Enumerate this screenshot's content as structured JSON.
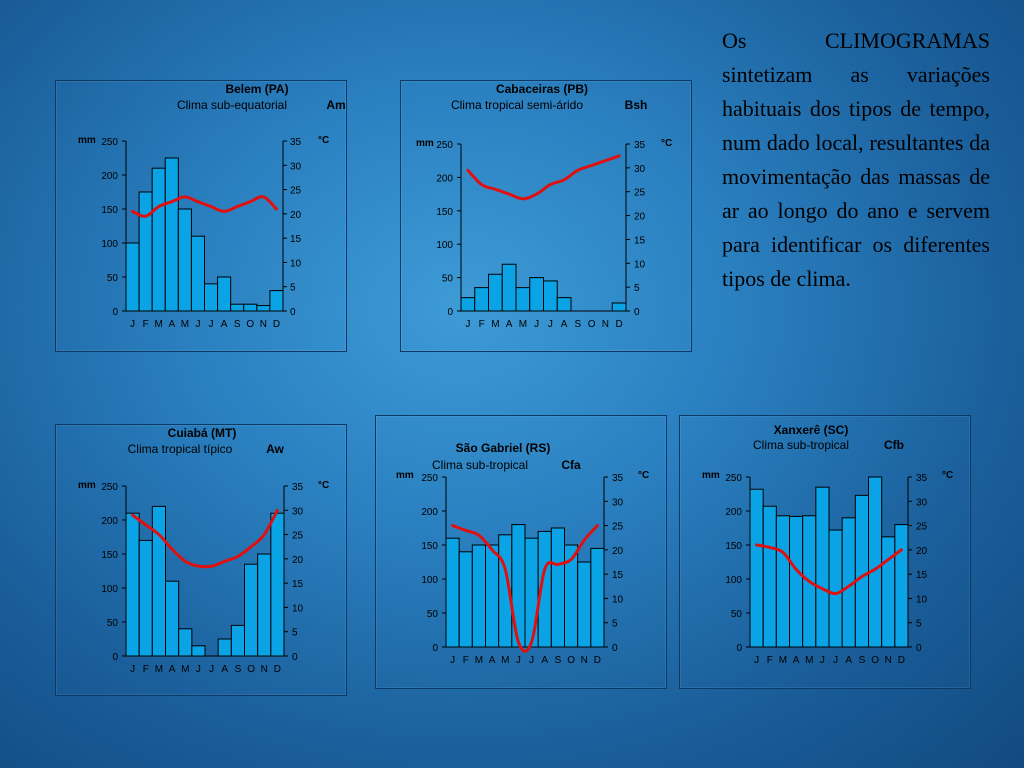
{
  "side_text": "Os CLIMOGRAMAS sintetizam as variações habituais dos tipos de tempo, num dado local, resultantes da movimentação das massas de ar ao longo do ano e servem para identificar os diferentes tipos de clima.",
  "chart_data": [
    {
      "type": "bar",
      "title": "Belem (PA)",
      "subtitle": "Clima sub-equatorial",
      "code": "Am",
      "categories": [
        "J",
        "F",
        "M",
        "A",
        "M",
        "J",
        "J",
        "A",
        "S",
        "O",
        "N",
        "D"
      ],
      "ylabel": "mm",
      "y2label": "°C",
      "ylim": [
        0,
        250
      ],
      "y2lim": [
        0,
        35
      ],
      "yticks": [
        0,
        50,
        100,
        150,
        200,
        250
      ],
      "y2ticks": [
        0,
        5,
        10,
        15,
        20,
        25,
        30,
        35
      ],
      "series": [
        {
          "kind": "bar",
          "values": [
            100,
            175,
            210,
            225,
            150,
            110,
            40,
            50,
            10,
            10,
            8,
            30
          ]
        },
        {
          "kind": "line",
          "values": [
            20.5,
            19.5,
            21.5,
            22.5,
            23.5,
            22.5,
            21.5,
            20.5,
            21.5,
            22.5,
            23.5,
            21
          ]
        }
      ]
    },
    {
      "type": "bar",
      "title": "Cabaceiras (PB)",
      "subtitle": "Clima tropical semi-árido",
      "code": "Bsh",
      "categories": [
        "J",
        "F",
        "M",
        "A",
        "M",
        "J",
        "J",
        "A",
        "S",
        "O",
        "N",
        "D"
      ],
      "ylabel": "mm",
      "y2label": "°C",
      "ylim": [
        0,
        250
      ],
      "y2lim": [
        0,
        35
      ],
      "yticks": [
        0,
        50,
        100,
        150,
        200,
        250
      ],
      "y2ticks": [
        0,
        5,
        10,
        15,
        20,
        25,
        30,
        35
      ],
      "series": [
        {
          "kind": "bar",
          "values": [
            20,
            35,
            55,
            70,
            35,
            50,
            45,
            20,
            0,
            0,
            0,
            12
          ]
        },
        {
          "kind": "line",
          "values": [
            29.5,
            26.5,
            25.5,
            24.5,
            23.5,
            24.5,
            26.5,
            27.5,
            29.5,
            30.5,
            31.5,
            32.5
          ]
        }
      ]
    },
    {
      "type": "bar",
      "title": "Cuiabá (MT)",
      "subtitle": "Clima tropical típico",
      "code": "Aw",
      "categories": [
        "J",
        "F",
        "M",
        "A",
        "M",
        "J",
        "J",
        "A",
        "S",
        "O",
        "N",
        "D"
      ],
      "ylabel": "mm",
      "y2label": "°C",
      "ylim": [
        0,
        250
      ],
      "y2lim": [
        0,
        35
      ],
      "yticks": [
        0,
        50,
        100,
        150,
        200,
        250
      ],
      "y2ticks": [
        0,
        5,
        10,
        15,
        20,
        25,
        30,
        35
      ],
      "series": [
        {
          "kind": "bar",
          "values": [
            210,
            170,
            220,
            110,
            40,
            15,
            0,
            25,
            45,
            135,
            150,
            210
          ]
        },
        {
          "kind": "line",
          "values": [
            29,
            27,
            25,
            22,
            19.5,
            18.5,
            18.5,
            19.5,
            20.5,
            22.5,
            25,
            30
          ]
        }
      ]
    },
    {
      "type": "bar",
      "title": "São Gabriel (RS)",
      "subtitle": "Clima sub-tropical",
      "code": "Cfa",
      "categories": [
        "J",
        "F",
        "M",
        "A",
        "M",
        "J",
        "J",
        "A",
        "S",
        "O",
        "N",
        "D"
      ],
      "ylabel": "mm",
      "y2label": "°C",
      "ylim": [
        0,
        250
      ],
      "y2lim": [
        0,
        35
      ],
      "yticks": [
        0,
        50,
        100,
        150,
        200,
        250
      ],
      "y2ticks": [
        0,
        5,
        10,
        15,
        20,
        25,
        30,
        35
      ],
      "series": [
        {
          "kind": "bar",
          "values": [
            160,
            140,
            150,
            150,
            165,
            180,
            160,
            170,
            175,
            150,
            125,
            145
          ]
        },
        {
          "kind": "line",
          "values": [
            25,
            24,
            23,
            20,
            16,
            1,
            1,
            16,
            17,
            18,
            22,
            25
          ]
        }
      ]
    },
    {
      "type": "bar",
      "title": "Xanxerê (SC)",
      "subtitle": "Clima sub-tropical",
      "code": "Cfb",
      "categories": [
        "J",
        "F",
        "M",
        "A",
        "M",
        "J",
        "J",
        "A",
        "S",
        "O",
        "N",
        "D"
      ],
      "ylabel": "mm",
      "y2label": "°C",
      "ylim": [
        0,
        250
      ],
      "y2lim": [
        0,
        35
      ],
      "yticks": [
        0,
        50,
        100,
        150,
        200,
        250
      ],
      "y2ticks": [
        0,
        5,
        10,
        15,
        20,
        25,
        30,
        35
      ],
      "series": [
        {
          "kind": "bar",
          "values": [
            232,
            207,
            193,
            192,
            193,
            235,
            172,
            190,
            223,
            250,
            162,
            180
          ]
        },
        {
          "kind": "line",
          "values": [
            21,
            20.5,
            19.5,
            16,
            13.5,
            12,
            11,
            12.5,
            14.5,
            16,
            18,
            20
          ]
        }
      ]
    }
  ]
}
